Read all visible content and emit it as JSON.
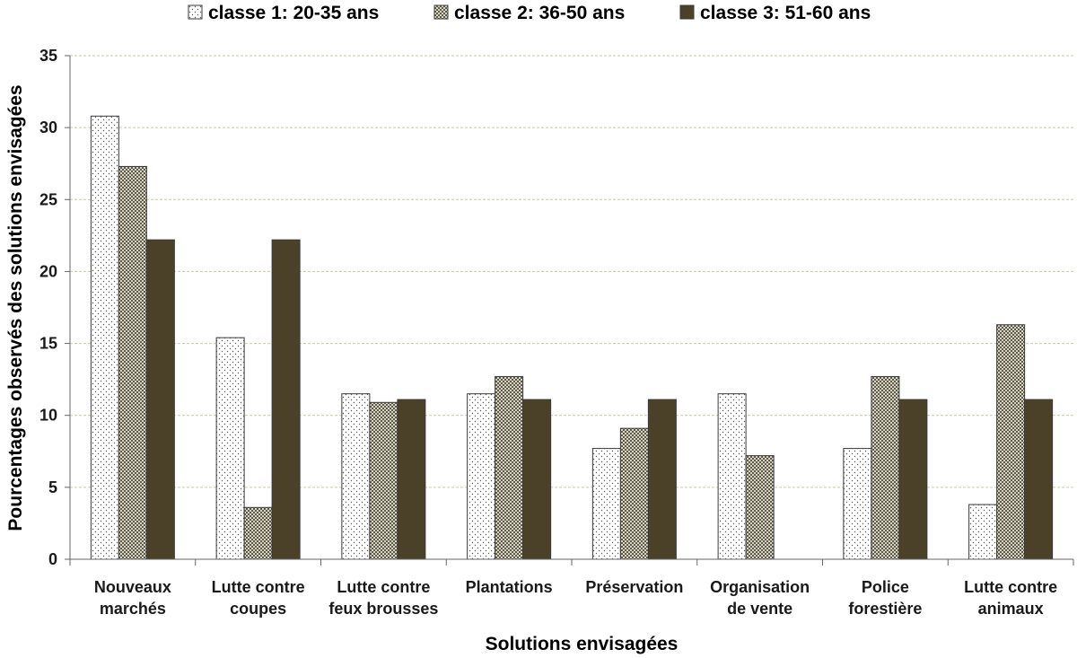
{
  "chart_data": {
    "type": "bar",
    "title": "",
    "xlabel": "Solutions envisagées",
    "ylabel": "Pourcentages observés des solutions envisagées",
    "ylim": [
      0,
      35
    ],
    "yticks": [
      0,
      5,
      10,
      15,
      20,
      25,
      30,
      35
    ],
    "grid": true,
    "legend_position": "top",
    "categories": [
      [
        "Nouveaux",
        "marchés"
      ],
      [
        "Lutte contre",
        "coupes"
      ],
      [
        "Lutte contre",
        "feux brousses"
      ],
      [
        "Plantations"
      ],
      [
        "Préservation"
      ],
      [
        "Organisation",
        "de vente"
      ],
      [
        "Police",
        "forestière"
      ],
      [
        "Lutte contre",
        "animaux"
      ]
    ],
    "series": [
      {
        "name": "classe 1: 20-35 ans",
        "pattern": "dots",
        "color": "#ffffff",
        "values": [
          30.8,
          15.4,
          11.5,
          11.5,
          7.7,
          11.5,
          7.7,
          3.8
        ]
      },
      {
        "name": "classe 2: 36-50 ans",
        "pattern": "checker",
        "color": "#8f8a77",
        "values": [
          27.3,
          3.6,
          10.9,
          12.7,
          9.1,
          7.2,
          12.7,
          16.3
        ]
      },
      {
        "name": "classe 3: 51-60 ans",
        "pattern": "solid",
        "color": "#4a4128",
        "values": [
          22.2,
          22.2,
          11.1,
          11.1,
          11.1,
          0,
          11.1,
          11.1
        ]
      }
    ]
  }
}
